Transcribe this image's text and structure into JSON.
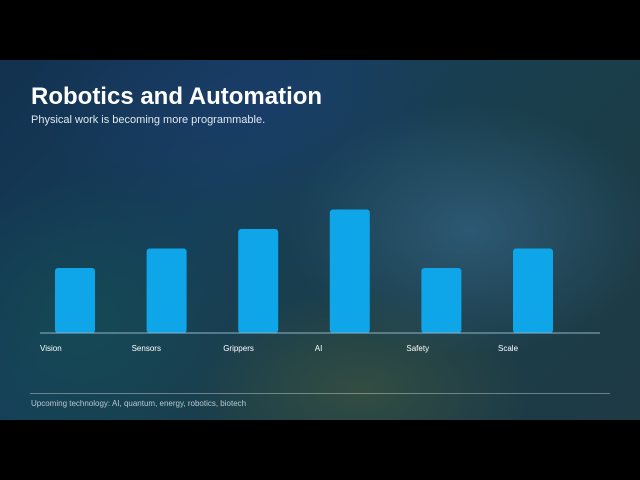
{
  "slide": {
    "title": "Robotics and Automation",
    "subtitle": "Physical work is becoming more programmable.",
    "footer": "Upcoming technology: AI, quantum, energy, robotics, biotech"
  },
  "chart_data": {
    "type": "bar",
    "title": "",
    "xlabel": "",
    "ylabel": "",
    "categories": [
      "Vision",
      "Sensors",
      "Grippers",
      "AI",
      "Safety",
      "Scale"
    ],
    "values": [
      50,
      65,
      80,
      95,
      50,
      65
    ],
    "ylim": [
      0,
      100
    ],
    "grid": false,
    "bar_color": "#0ea5e9",
    "axis_color": "#8fb3c9",
    "label_color": "#ffffff"
  }
}
